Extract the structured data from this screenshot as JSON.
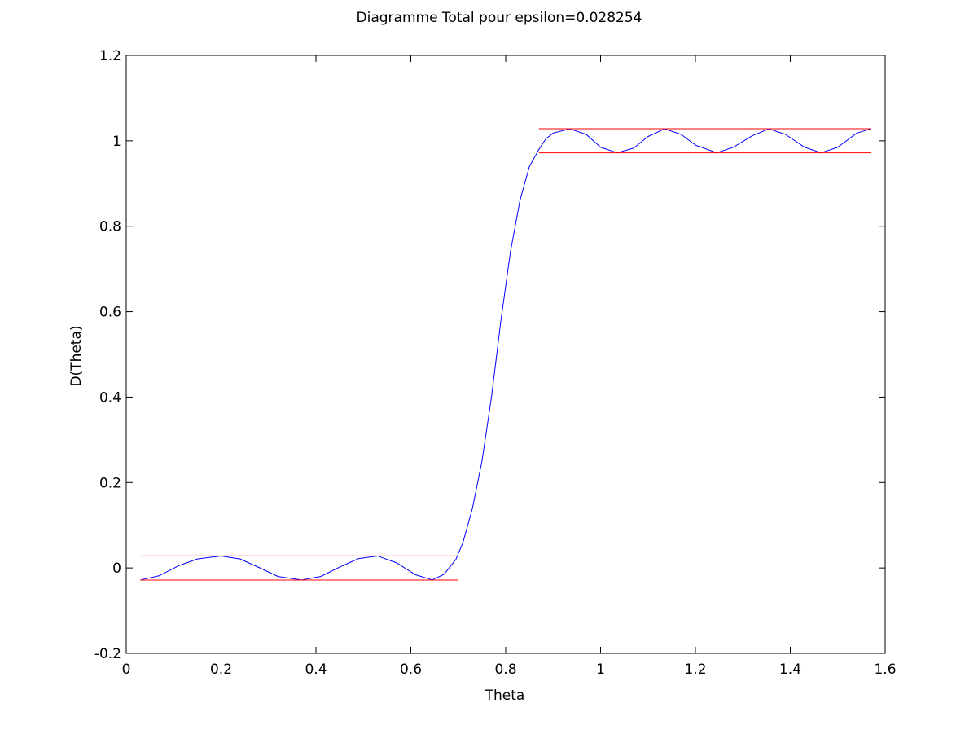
{
  "chart_data": {
    "type": "line",
    "title": "Diagramme Total pour epsilon=0.028254",
    "xlabel": "Theta",
    "ylabel": "D(Theta)",
    "xlim": [
      0,
      1.6
    ],
    "ylim": [
      -0.2,
      1.2
    ],
    "xticks": [
      0,
      0.2,
      0.4,
      0.6,
      0.8,
      1,
      1.2,
      1.4,
      1.6
    ],
    "xtick_labels": [
      "0",
      "0.2",
      "0.4",
      "0.6",
      "0.8",
      "1",
      "1.2",
      "1.4",
      "1.6"
    ],
    "yticks": [
      -0.2,
      0,
      0.2,
      0.4,
      0.6,
      0.8,
      1,
      1.2
    ],
    "ytick_labels": [
      "-0.2",
      "0",
      "0.2",
      "0.4",
      "0.6",
      "0.8",
      "1",
      "1.2"
    ],
    "grid": false,
    "series": [
      {
        "color": "#0000ff",
        "x": [
          0.03,
          0.07,
          0.11,
          0.15,
          0.2,
          0.24,
          0.28,
          0.32,
          0.37,
          0.41,
          0.45,
          0.49,
          0.53,
          0.57,
          0.61,
          0.645,
          0.67,
          0.695,
          0.71,
          0.73,
          0.75,
          0.77,
          0.79,
          0.81,
          0.83,
          0.85,
          0.87,
          0.885,
          0.9,
          0.935,
          0.97,
          1.0,
          1.035,
          1.07,
          1.1,
          1.135,
          1.17,
          1.2,
          1.245,
          1.28,
          1.32,
          1.355,
          1.39,
          1.43,
          1.465,
          1.5,
          1.54,
          1.57
        ],
        "y": [
          -0.028,
          -0.018,
          0.005,
          0.021,
          0.028,
          0.021,
          0.001,
          -0.02,
          -0.028,
          -0.02,
          0.002,
          0.022,
          0.028,
          0.012,
          -0.016,
          -0.028,
          -0.015,
          0.02,
          0.06,
          0.14,
          0.25,
          0.4,
          0.58,
          0.74,
          0.86,
          0.94,
          0.98,
          1.005,
          1.018,
          1.028,
          1.015,
          0.985,
          0.972,
          0.983,
          1.01,
          1.028,
          1.015,
          0.99,
          0.972,
          0.985,
          1.012,
          1.028,
          1.015,
          0.985,
          0.972,
          0.985,
          1.018,
          1.028
        ]
      },
      {
        "color": "#ff0000",
        "x": [
          0.03,
          0.7
        ],
        "y": [
          0.028254,
          0.028254
        ]
      },
      {
        "color": "#ff0000",
        "x": [
          0.03,
          0.7
        ],
        "y": [
          -0.028254,
          -0.028254
        ]
      },
      {
        "color": "#ff0000",
        "x": [
          0.87,
          1.57
        ],
        "y": [
          1.028254,
          1.028254
        ]
      },
      {
        "color": "#ff0000",
        "x": [
          0.87,
          1.57
        ],
        "y": [
          0.971746,
          0.971746
        ]
      }
    ]
  }
}
